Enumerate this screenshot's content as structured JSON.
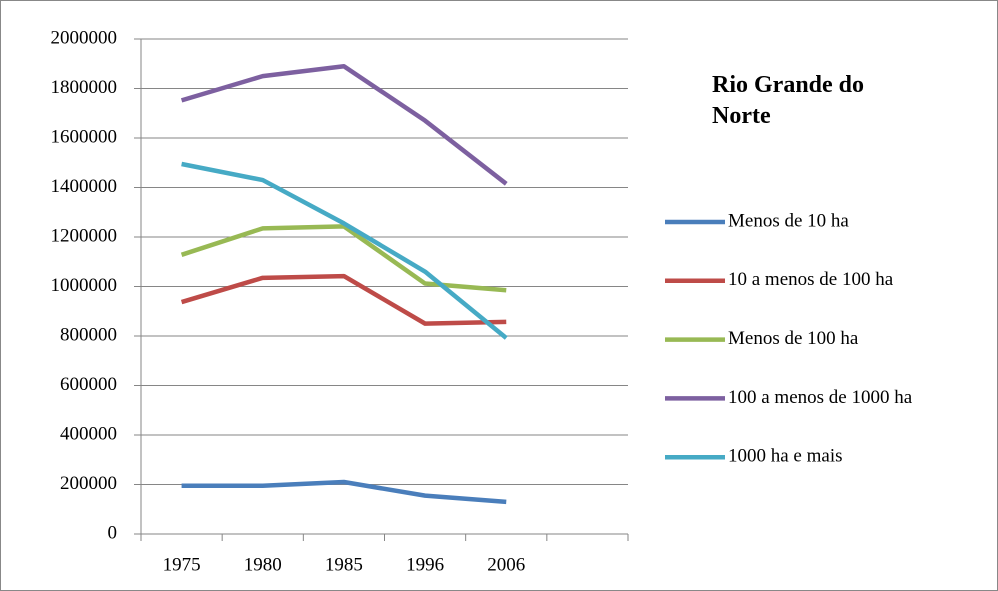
{
  "chart_data": {
    "type": "line",
    "title": "Rio Grande do Norte",
    "categories": [
      "1975",
      "1980",
      "1985",
      "1996",
      "2006",
      null
    ],
    "series": [
      {
        "name": "Menos de 10 ha",
        "color": "#4a7ebb",
        "values": [
          195000,
          195000,
          210000,
          155000,
          130000,
          null
        ]
      },
      {
        "name": "10 a menos de 100 ha",
        "color": "#be4b48",
        "values": [
          937000,
          1035000,
          1042000,
          850000,
          857000,
          null
        ]
      },
      {
        "name": "Menos de 100 ha",
        "color": "#98b954",
        "values": [
          1128000,
          1235000,
          1243000,
          1012000,
          985000,
          null
        ]
      },
      {
        "name": "100 a menos de 1000 ha",
        "color": "#7d60a0",
        "values": [
          1752000,
          1850000,
          1890000,
          1670000,
          1415000,
          null
        ]
      },
      {
        "name": "1000 ha e mais",
        "color": "#46aac5",
        "values": [
          1495000,
          1430000,
          1255000,
          1060000,
          792000,
          null
        ]
      }
    ],
    "ylim": [
      0,
      2000000
    ],
    "yticks": [
      0,
      200000,
      400000,
      600000,
      800000,
      1000000,
      1200000,
      1400000,
      1600000,
      1800000,
      2000000
    ],
    "grid": true,
    "legend": "right"
  }
}
